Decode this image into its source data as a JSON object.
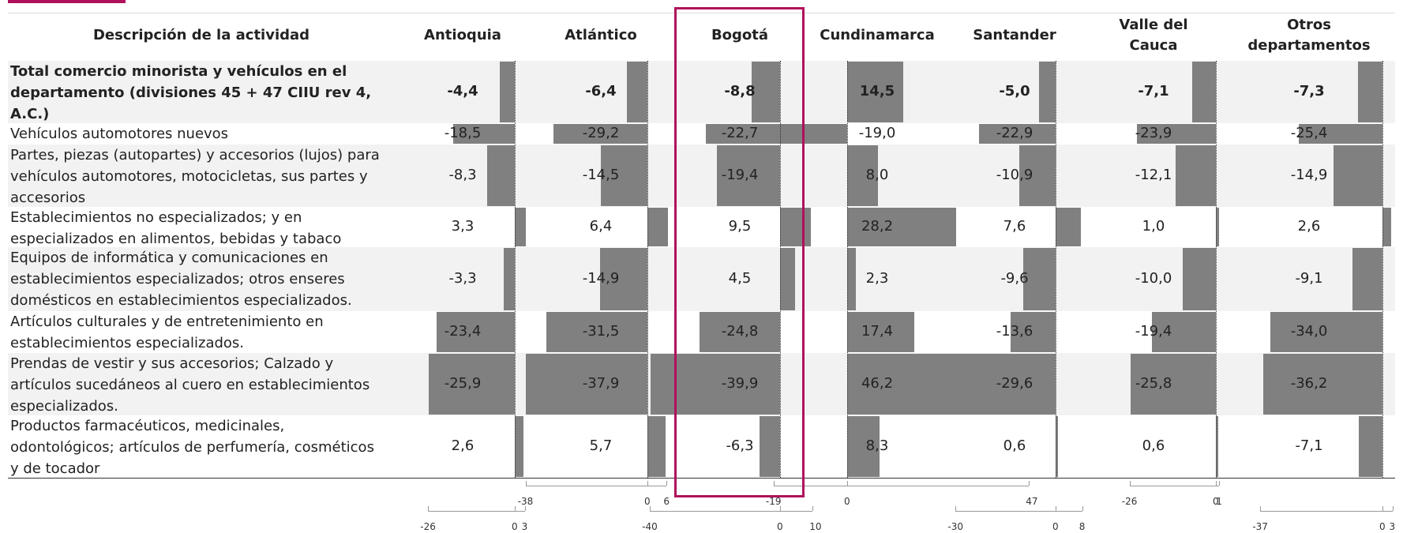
{
  "header": {
    "description_label": "Descripción de la actividad",
    "columns": [
      "Antioquia",
      "Atlántico",
      "Bogotá",
      "Cundinamarca",
      "Santander",
      "Valle del Cauca",
      "Otros departamentos"
    ],
    "highlighted_column": "Bogotá"
  },
  "colors": {
    "accent": "#b0115a",
    "bar": "#808080",
    "row_shade": "#f2f2f2"
  },
  "chart_data": {
    "type": "bar",
    "orientation": "horizontal",
    "title": "",
    "categories": [
      "Total comercio minorista y vehículos en el departamento (divisiones 45 + 47 CIIU rev 4, A.C.)",
      "Vehículos automotores nuevos",
      "Partes, piezas (autopartes) y accesorios (lujos) para vehículos automotores, motocicletas, sus partes y accesorios",
      "Establecimientos no especializados; y en especializados en alimentos, bebidas y tabaco",
      "Equipos de informática y comunicaciones en establecimientos especializados;  otros enseres domésticos en establecimientos especializados.",
      "Artículos culturales y de entretenimiento en establecimientos especializados.",
      "Prendas de vestir y sus accesorios; Calzado y artículos sucedáneos al cuero en establecimientos especializados.",
      "Productos farmacéuticos, medicinales, odontológicos; artículos de perfumería, cosméticos y de tocador"
    ],
    "category_lines": [
      [
        "Total comercio minorista y vehículos en el",
        "departamento (divisiones 45 + 47 CIIU rev 4,",
        "A.C.)"
      ],
      [
        "Vehículos automotores nuevos"
      ],
      [
        "Partes, piezas (autopartes) y accesorios (lujos) para",
        "vehículos automotores, motocicletas, sus partes y",
        "accesorios"
      ],
      [
        "Establecimientos no especializados; y en",
        "especializados en alimentos, bebidas y tabaco"
      ],
      [
        "Equipos de informática y comunicaciones en",
        "establecimientos especializados;  otros enseres",
        "domésticos en establecimientos especializados."
      ],
      [
        "Artículos culturales y de entretenimiento en",
        "establecimientos especializados."
      ],
      [
        "Prendas de vestir y sus accesorios; Calzado y",
        "artículos sucedáneos al cuero en establecimientos",
        "especializados."
      ],
      [
        "Productos farmacéuticos, medicinales,",
        "odontológicos; artículos de perfumería, cosméticos",
        "y de tocador"
      ]
    ],
    "series": [
      {
        "name": "Antioquia",
        "values": [
          -4.4,
          -18.5,
          -8.3,
          3.3,
          -3.3,
          -23.4,
          -25.9,
          2.6
        ],
        "labels": [
          "-4,4",
          "-18,5",
          "-8,3",
          "3,3",
          "-3,3",
          "-23,4",
          "-25,9",
          "2,6"
        ],
        "axis": [
          -26,
          3
        ],
        "axis_ticks": [
          "-26",
          "0",
          "3"
        ]
      },
      {
        "name": "Atlántico",
        "values": [
          -6.4,
          -29.2,
          -14.5,
          6.4,
          -14.9,
          -31.5,
          -37.9,
          5.7
        ],
        "labels": [
          "-6,4",
          "-29,2",
          "-14,5",
          "6,4",
          "-14,9",
          "-31,5",
          "-37,9",
          "5,7"
        ],
        "axis": [
          -38,
          6
        ],
        "axis_ticks": [
          "-38",
          "0",
          "6"
        ]
      },
      {
        "name": "Bogotá",
        "values": [
          -8.8,
          -22.7,
          -19.4,
          9.5,
          4.5,
          -24.8,
          -39.9,
          -6.3
        ],
        "labels": [
          "-8,8",
          "-22,7",
          "-19,4",
          "9,5",
          "4,5",
          "-24,8",
          "-39,9",
          "-6,3"
        ],
        "axis": [
          -40,
          10
        ],
        "axis_ticks": [
          "-40",
          "0",
          "10"
        ]
      },
      {
        "name": "Cundinamarca",
        "values": [
          14.5,
          -19.0,
          8.0,
          28.2,
          2.3,
          17.4,
          46.2,
          8.3
        ],
        "labels": [
          "14,5",
          "-19,0",
          "8,0",
          "28,2",
          "2,3",
          "17,4",
          "46,2",
          "8,3"
        ],
        "axis": [
          -19,
          47
        ],
        "axis_ticks": [
          "-19",
          "0",
          "47"
        ]
      },
      {
        "name": "Santander",
        "values": [
          -5.0,
          -22.9,
          -10.9,
          7.6,
          -9.6,
          -13.6,
          -29.6,
          0.6
        ],
        "labels": [
          "-5,0",
          "-22,9",
          "-10,9",
          "7,6",
          "-9,6",
          "-13,6",
          "-29,6",
          "0,6"
        ],
        "axis": [
          -30,
          8
        ],
        "axis_ticks": [
          "-30",
          "0",
          "8"
        ]
      },
      {
        "name": "Valle del Cauca",
        "values": [
          -7.1,
          -23.9,
          -12.1,
          1.0,
          -10.0,
          -19.4,
          -25.8,
          0.6
        ],
        "labels": [
          "-7,1",
          "-23,9",
          "-12,1",
          "1,0",
          "-10,0",
          "-19,4",
          "-25,8",
          "0,6"
        ],
        "axis": [
          -26,
          1
        ],
        "axis_ticks": [
          "-26",
          "0",
          "1"
        ]
      },
      {
        "name": "Otros departamentos",
        "values": [
          -7.3,
          -25.4,
          -14.9,
          2.6,
          -9.1,
          -34.0,
          -36.2,
          -7.1
        ],
        "labels": [
          "-7,3",
          "-25,4",
          "-14,9",
          "2,6",
          "-9,1",
          "-34,0",
          "-36,2",
          "-7,1"
        ],
        "axis": [
          -37,
          3
        ],
        "axis_ticks": [
          "-37",
          "0",
          "3"
        ]
      }
    ],
    "bold_rows": [
      0
    ],
    "grid": false,
    "legend": "none"
  }
}
